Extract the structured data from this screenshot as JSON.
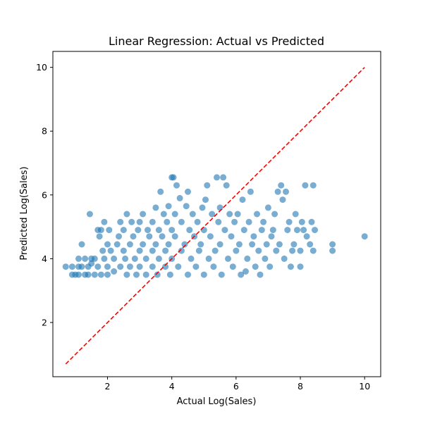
{
  "chart_data": {
    "type": "scatter",
    "title": "Linear Regression: Actual vs Predicted",
    "xlabel": "Actual Log(Sales)",
    "ylabel": "Predicted Log(Sales)",
    "xlim": [
      0.3,
      10.5
    ],
    "ylim": [
      0.3,
      10.5
    ],
    "xticks": [
      2,
      4,
      6,
      8,
      10
    ],
    "yticks": [
      2,
      4,
      6,
      8,
      10
    ],
    "grid": false,
    "point_color": "#1f77b4",
    "point_opacity": 0.6,
    "reference_line": {
      "from": [
        0.7,
        0.7
      ],
      "to": [
        10.0,
        10.0
      ],
      "color": "#ff0000",
      "style": "dashed"
    },
    "series": [
      {
        "points": [
          [
            0.7,
            3.75
          ],
          [
            0.9,
            3.75
          ],
          [
            0.9,
            3.5
          ],
          [
            1.0,
            3.5
          ],
          [
            1.1,
            3.75
          ],
          [
            1.1,
            3.5
          ],
          [
            1.1,
            4.0
          ],
          [
            1.2,
            3.75
          ],
          [
            1.2,
            4.45
          ],
          [
            1.3,
            3.5
          ],
          [
            1.3,
            4.0
          ],
          [
            1.4,
            3.75
          ],
          [
            1.4,
            3.5
          ],
          [
            1.45,
            5.4
          ],
          [
            1.5,
            4.0
          ],
          [
            1.5,
            3.85
          ],
          [
            1.6,
            3.5
          ],
          [
            1.6,
            4.0
          ],
          [
            1.7,
            4.9
          ],
          [
            1.7,
            3.75
          ],
          [
            1.75,
            4.7
          ],
          [
            1.8,
            4.9
          ],
          [
            1.8,
            3.5
          ],
          [
            1.85,
            4.25
          ],
          [
            1.9,
            4.0
          ],
          [
            1.9,
            5.15
          ],
          [
            2.0,
            4.45
          ],
          [
            2.0,
            3.75
          ],
          [
            2.0,
            3.5
          ],
          [
            2.05,
            4.9
          ],
          [
            2.1,
            4.25
          ],
          [
            2.2,
            4.0
          ],
          [
            2.2,
            3.6
          ],
          [
            2.3,
            4.45
          ],
          [
            2.35,
            4.7
          ],
          [
            2.4,
            3.75
          ],
          [
            2.4,
            5.15
          ],
          [
            2.5,
            4.9
          ],
          [
            2.5,
            4.25
          ],
          [
            2.55,
            4.0
          ],
          [
            2.6,
            3.5
          ],
          [
            2.6,
            5.4
          ],
          [
            2.7,
            4.45
          ],
          [
            2.7,
            3.75
          ],
          [
            2.75,
            5.15
          ],
          [
            2.8,
            4.7
          ],
          [
            2.85,
            4.0
          ],
          [
            2.9,
            3.5
          ],
          [
            2.95,
            4.9
          ],
          [
            3.0,
            4.25
          ],
          [
            3.0,
            5.15
          ],
          [
            3.0,
            3.75
          ],
          [
            3.1,
            4.45
          ],
          [
            3.1,
            5.4
          ],
          [
            3.2,
            4.0
          ],
          [
            3.2,
            3.5
          ],
          [
            3.25,
            4.9
          ],
          [
            3.3,
            4.7
          ],
          [
            3.4,
            4.25
          ],
          [
            3.4,
            5.15
          ],
          [
            3.4,
            3.75
          ],
          [
            3.5,
            5.6
          ],
          [
            3.5,
            4.45
          ],
          [
            3.55,
            3.5
          ],
          [
            3.6,
            4.9
          ],
          [
            3.6,
            4.0
          ],
          [
            3.65,
            6.1
          ],
          [
            3.7,
            4.7
          ],
          [
            3.75,
            5.4
          ],
          [
            3.8,
            4.25
          ],
          [
            3.8,
            3.75
          ],
          [
            3.85,
            5.15
          ],
          [
            3.9,
            4.45
          ],
          [
            3.9,
            5.65
          ],
          [
            3.95,
            3.5
          ],
          [
            4.0,
            6.55
          ],
          [
            4.0,
            4.9
          ],
          [
            4.0,
            4.0
          ],
          [
            4.05,
            6.55
          ],
          [
            4.1,
            5.4
          ],
          [
            4.1,
            4.7
          ],
          [
            4.15,
            6.3
          ],
          [
            4.2,
            3.75
          ],
          [
            4.25,
            5.9
          ],
          [
            4.3,
            4.25
          ],
          [
            4.3,
            5.15
          ],
          [
            4.4,
            4.45
          ],
          [
            4.45,
            5.65
          ],
          [
            4.5,
            6.1
          ],
          [
            4.5,
            3.5
          ],
          [
            4.55,
            4.9
          ],
          [
            4.6,
            4.0
          ],
          [
            4.65,
            5.4
          ],
          [
            4.7,
            4.7
          ],
          [
            4.75,
            3.75
          ],
          [
            4.8,
            5.15
          ],
          [
            4.85,
            4.25
          ],
          [
            4.9,
            4.45
          ],
          [
            4.95,
            5.6
          ],
          [
            5.0,
            3.5
          ],
          [
            5.0,
            4.9
          ],
          [
            5.05,
            5.85
          ],
          [
            5.1,
            6.3
          ],
          [
            5.15,
            4.0
          ],
          [
            5.2,
            4.7
          ],
          [
            5.25,
            5.4
          ],
          [
            5.3,
            3.75
          ],
          [
            5.35,
            4.25
          ],
          [
            5.4,
            6.55
          ],
          [
            5.45,
            5.15
          ],
          [
            5.5,
            4.45
          ],
          [
            5.5,
            5.6
          ],
          [
            5.55,
            3.5
          ],
          [
            5.6,
            6.55
          ],
          [
            5.65,
            4.9
          ],
          [
            5.7,
            6.3
          ],
          [
            5.75,
            4.0
          ],
          [
            5.8,
            5.4
          ],
          [
            5.85,
            4.7
          ],
          [
            5.9,
            3.75
          ],
          [
            5.95,
            5.15
          ],
          [
            6.0,
            4.25
          ],
          [
            6.05,
            5.4
          ],
          [
            6.1,
            4.45
          ],
          [
            6.15,
            3.5
          ],
          [
            6.2,
            5.85
          ],
          [
            6.25,
            4.9
          ],
          [
            6.3,
            3.6
          ],
          [
            6.35,
            4.0
          ],
          [
            6.4,
            5.15
          ],
          [
            6.45,
            6.1
          ],
          [
            6.5,
            4.45
          ],
          [
            6.55,
            4.7
          ],
          [
            6.6,
            3.75
          ],
          [
            6.65,
            5.4
          ],
          [
            6.7,
            4.25
          ],
          [
            6.75,
            3.5
          ],
          [
            6.8,
            4.9
          ],
          [
            6.85,
            5.15
          ],
          [
            6.9,
            4.0
          ],
          [
            6.95,
            4.45
          ],
          [
            7.0,
            5.6
          ],
          [
            7.05,
            3.75
          ],
          [
            7.1,
            4.7
          ],
          [
            7.15,
            4.9
          ],
          [
            7.2,
            5.4
          ],
          [
            7.25,
            4.25
          ],
          [
            7.3,
            6.1
          ],
          [
            7.35,
            4.45
          ],
          [
            7.4,
            6.3
          ],
          [
            7.45,
            5.85
          ],
          [
            7.5,
            4.0
          ],
          [
            7.55,
            6.1
          ],
          [
            7.6,
            4.9
          ],
          [
            7.65,
            5.15
          ],
          [
            7.7,
            3.75
          ],
          [
            7.75,
            4.25
          ],
          [
            7.8,
            4.45
          ],
          [
            7.85,
            5.4
          ],
          [
            7.9,
            4.9
          ],
          [
            8.0,
            4.25
          ],
          [
            8.0,
            3.75
          ],
          [
            8.05,
            5.15
          ],
          [
            8.1,
            4.9
          ],
          [
            8.15,
            6.3
          ],
          [
            8.2,
            4.7
          ],
          [
            8.3,
            4.45
          ],
          [
            8.35,
            5.15
          ],
          [
            8.4,
            6.3
          ],
          [
            8.45,
            4.9
          ],
          [
            8.4,
            4.25
          ],
          [
            9.0,
            4.45
          ],
          [
            9.0,
            4.25
          ],
          [
            10.0,
            4.7
          ]
        ]
      }
    ]
  }
}
